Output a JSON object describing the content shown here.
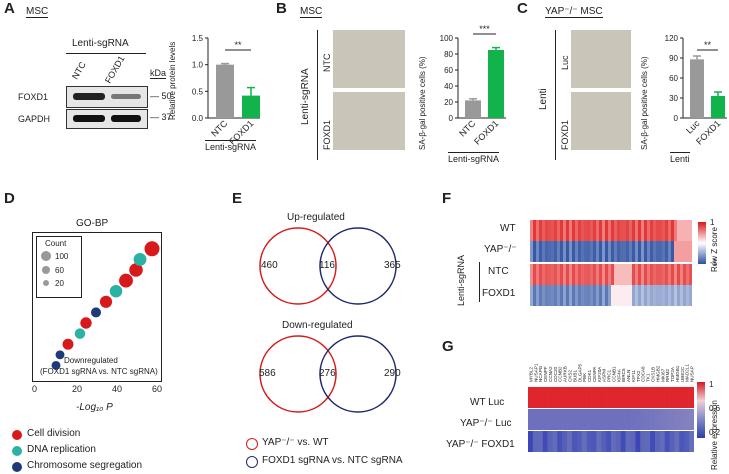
{
  "panels": {
    "A": {
      "letter": "A",
      "cell": "MSC",
      "group": "Lenti-sgRNA",
      "lanes": [
        "NTC",
        "FOXD1"
      ],
      "kda": "kDa",
      "rows": [
        {
          "name": "FOXD1",
          "size": "50"
        },
        {
          "name": "GAPDH",
          "size": "37"
        }
      ],
      "stars": "**",
      "chart_ylabel": "Relative protein levels",
      "chart_xgroup": "Lenti-sgRNA"
    },
    "B": {
      "letter": "B",
      "cell": "MSC",
      "group": "Lenti-sgRNA",
      "rows": [
        "NTC",
        "FOXD1"
      ],
      "stars": "***",
      "chart_ylabel": "SA-β-gal positive cells (%)",
      "chart_xgroup": "Lenti-sgRNA"
    },
    "C": {
      "letter": "C",
      "cell": "YAP⁻/⁻ MSC",
      "group": "Lenti",
      "rows": [
        "Luc",
        "FOXD1"
      ],
      "stars": "**",
      "chart_ylabel": "SA-β-gal positive cells (%)",
      "chart_xgroup": "Lenti"
    },
    "D": {
      "letter": "D",
      "title": "GO-BP",
      "legend_title": "Count",
      "legend_sizes": [
        "100",
        "60",
        "20"
      ],
      "note_line1": "Downregulated",
      "note_line2": "(FOXD1 sgRNA vs. NTC sgRNA)",
      "xlabel": "-Log₁₀ P",
      "categories": [
        {
          "name": "Cell division",
          "color": "#d7191c"
        },
        {
          "name": "DNA replication",
          "color": "#2bb2a4"
        },
        {
          "name": "Chromosome segregation",
          "color": "#1f3a7a"
        }
      ]
    },
    "E": {
      "letter": "E",
      "up_title": "Up-regulated",
      "up_values": [
        "460",
        "116",
        "365"
      ],
      "down_title": "Down-regulated",
      "down_values": [
        "586",
        "276",
        "290"
      ],
      "legend": [
        "YAP⁻/⁻ vs. WT",
        "FOXD1 sgRNA vs. NTC sgRNA"
      ]
    },
    "F": {
      "letter": "F",
      "rows": [
        "WT",
        "YAP⁻/⁻",
        "NTC",
        "FOXD1"
      ],
      "group": "Lenti-sgRNA",
      "scale_label": "Row Z score",
      "scale_ticks": [
        "1",
        "-1"
      ]
    },
    "G": {
      "letter": "G",
      "genes": [
        "MYBL2",
        "NUSAP1",
        "NCAPG",
        "CENPF",
        "CCNA2",
        "CDC20",
        "CCNB2",
        "AURKB",
        "CKS2",
        "BUB1",
        "DLGAP5",
        "PBK",
        "CDK1",
        "CENPA",
        "KIF20A",
        "ASPM",
        "PRC1",
        "CCNB1",
        "KIF4A",
        "BIRC5",
        "ANLN",
        "KIF11",
        "TPX2",
        "CDCA8",
        "TK1",
        "CKS1B",
        "HMGB2",
        "MKI67",
        "RRM2",
        "TOP2A",
        "HMGB1",
        "UBE2C",
        "MAD2L1",
        "NUSAP"
      ],
      "rows": [
        "WT Luc",
        "YAP⁻/⁻ Luc",
        "YAP⁻/⁻ FOXD1"
      ],
      "scale_label": "Relative expression",
      "scale_ticks": [
        "1",
        "0.6",
        "0.2"
      ]
    }
  },
  "chart_data": [
    {
      "type": "bar",
      "panel": "A",
      "categories": [
        "NTC",
        "FOXD1"
      ],
      "values": [
        1.0,
        0.42
      ],
      "errors": [
        0.02,
        0.15
      ],
      "ylabel": "Relative protein levels",
      "ylim": [
        0,
        1.5
      ],
      "yticks": [
        "0.0",
        "0.5",
        "1.0",
        "1.5"
      ],
      "colors": [
        "#999999",
        "#11b34a"
      ]
    },
    {
      "type": "bar",
      "panel": "B",
      "categories": [
        "NTC",
        "FOXD1"
      ],
      "values": [
        22,
        85
      ],
      "errors": [
        2,
        3
      ],
      "ylabel": "SA-β-gal positive cells (%)",
      "ylim": [
        0,
        100
      ],
      "yticks": [
        "0",
        "20",
        "40",
        "60",
        "80",
        "100"
      ],
      "colors": [
        "#999999",
        "#11b34a"
      ]
    },
    {
      "type": "bar",
      "panel": "C",
      "categories": [
        "Luc",
        "FOXD1"
      ],
      "values": [
        88,
        33
      ],
      "errors": [
        5,
        6
      ],
      "ylabel": "SA-β-gal positive cells (%)",
      "ylim": [
        0,
        120
      ],
      "yticks": [
        "0",
        "30",
        "60",
        "90",
        "120"
      ],
      "colors": [
        "#999999",
        "#11b34a"
      ]
    },
    {
      "type": "scatter",
      "panel": "D",
      "xlabel": "-Log₁₀ P",
      "xlim": [
        0,
        60
      ],
      "xticks": [
        "0",
        "20",
        "40",
        "60"
      ],
      "points": [
        {
          "x": 10,
          "y": 1,
          "cat": 2,
          "count": 20
        },
        {
          "x": 12,
          "y": 2,
          "cat": 2,
          "count": 20
        },
        {
          "x": 16,
          "y": 3,
          "cat": 0,
          "count": 40
        },
        {
          "x": 22,
          "y": 4,
          "cat": 1,
          "count": 35
        },
        {
          "x": 25,
          "y": 5,
          "cat": 0,
          "count": 45
        },
        {
          "x": 30,
          "y": 6,
          "cat": 2,
          "count": 30
        },
        {
          "x": 35,
          "y": 7,
          "cat": 0,
          "count": 55
        },
        {
          "x": 40,
          "y": 8,
          "cat": 1,
          "count": 60
        },
        {
          "x": 45,
          "y": 9,
          "cat": 0,
          "count": 80
        },
        {
          "x": 50,
          "y": 10,
          "cat": 0,
          "count": 75
        },
        {
          "x": 52,
          "y": 11,
          "cat": 1,
          "count": 65
        },
        {
          "x": 58,
          "y": 12,
          "cat": 0,
          "count": 100
        }
      ]
    }
  ]
}
